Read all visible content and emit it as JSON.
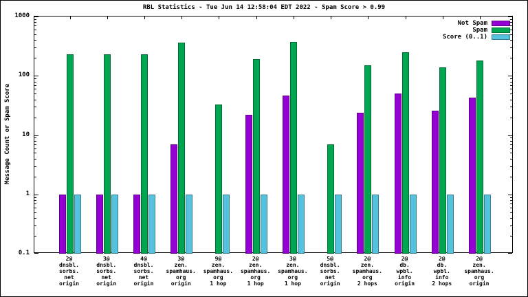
{
  "chart_data": {
    "type": "bar",
    "title": "RBL Statistics - Tue Jun 14 12:58:04 EDT 2022 - Spam Score > 0.99",
    "xlabel": "",
    "ylabel": "Message Count or Spam Score",
    "yscale": "log",
    "ylim": [
      0.1,
      1000
    ],
    "yticks": [
      1000,
      100,
      10,
      1,
      0.1
    ],
    "grid": false,
    "legend_position": "top-right",
    "categories": [
      [
        "2@",
        "dnsbl.",
        "sorbs.",
        "net",
        "origin"
      ],
      [
        "3@",
        "dnsbl.",
        "sorbs.",
        "net",
        "origin"
      ],
      [
        "4@",
        "dnsbl.",
        "sorbs.",
        "net",
        "origin"
      ],
      [
        "3@",
        "zen.",
        "spamhaus.",
        "org",
        "origin"
      ],
      [
        "9@",
        "zen.",
        "spamhaus.",
        "org",
        "1 hop"
      ],
      [
        "2@",
        "zen.",
        "spamhaus.",
        "org",
        "1 hop"
      ],
      [
        "3@",
        "zen.",
        "spamhaus.",
        "org",
        "1 hop"
      ],
      [
        "5@",
        "dnsbl.",
        "sorbs.",
        "net",
        "origin"
      ],
      [
        "2@",
        "zen.",
        "spamhaus.",
        "org",
        "2 hops"
      ],
      [
        "2@",
        "db.",
        "wpbl.",
        "info",
        "origin"
      ],
      [
        "2@",
        "db.",
        "wpbl.",
        "info",
        "2 hops"
      ],
      [
        "2@",
        "zen.",
        "spamhaus.",
        "org",
        "origin"
      ]
    ],
    "series": [
      {
        "name": "Not Spam",
        "color": "#9400d3",
        "values": [
          1,
          1,
          1,
          7,
          null,
          22,
          47,
          null,
          24,
          50,
          26,
          43
        ]
      },
      {
        "name": "Spam",
        "color": "#00a550",
        "values": [
          230,
          230,
          230,
          360,
          33,
          190,
          370,
          7,
          150,
          250,
          140,
          180
        ]
      },
      {
        "name": "Score (0..1)",
        "color": "#56c1dc",
        "values": [
          1,
          1,
          1,
          1,
          1,
          1,
          1,
          1,
          1,
          1,
          1,
          1
        ]
      }
    ]
  }
}
